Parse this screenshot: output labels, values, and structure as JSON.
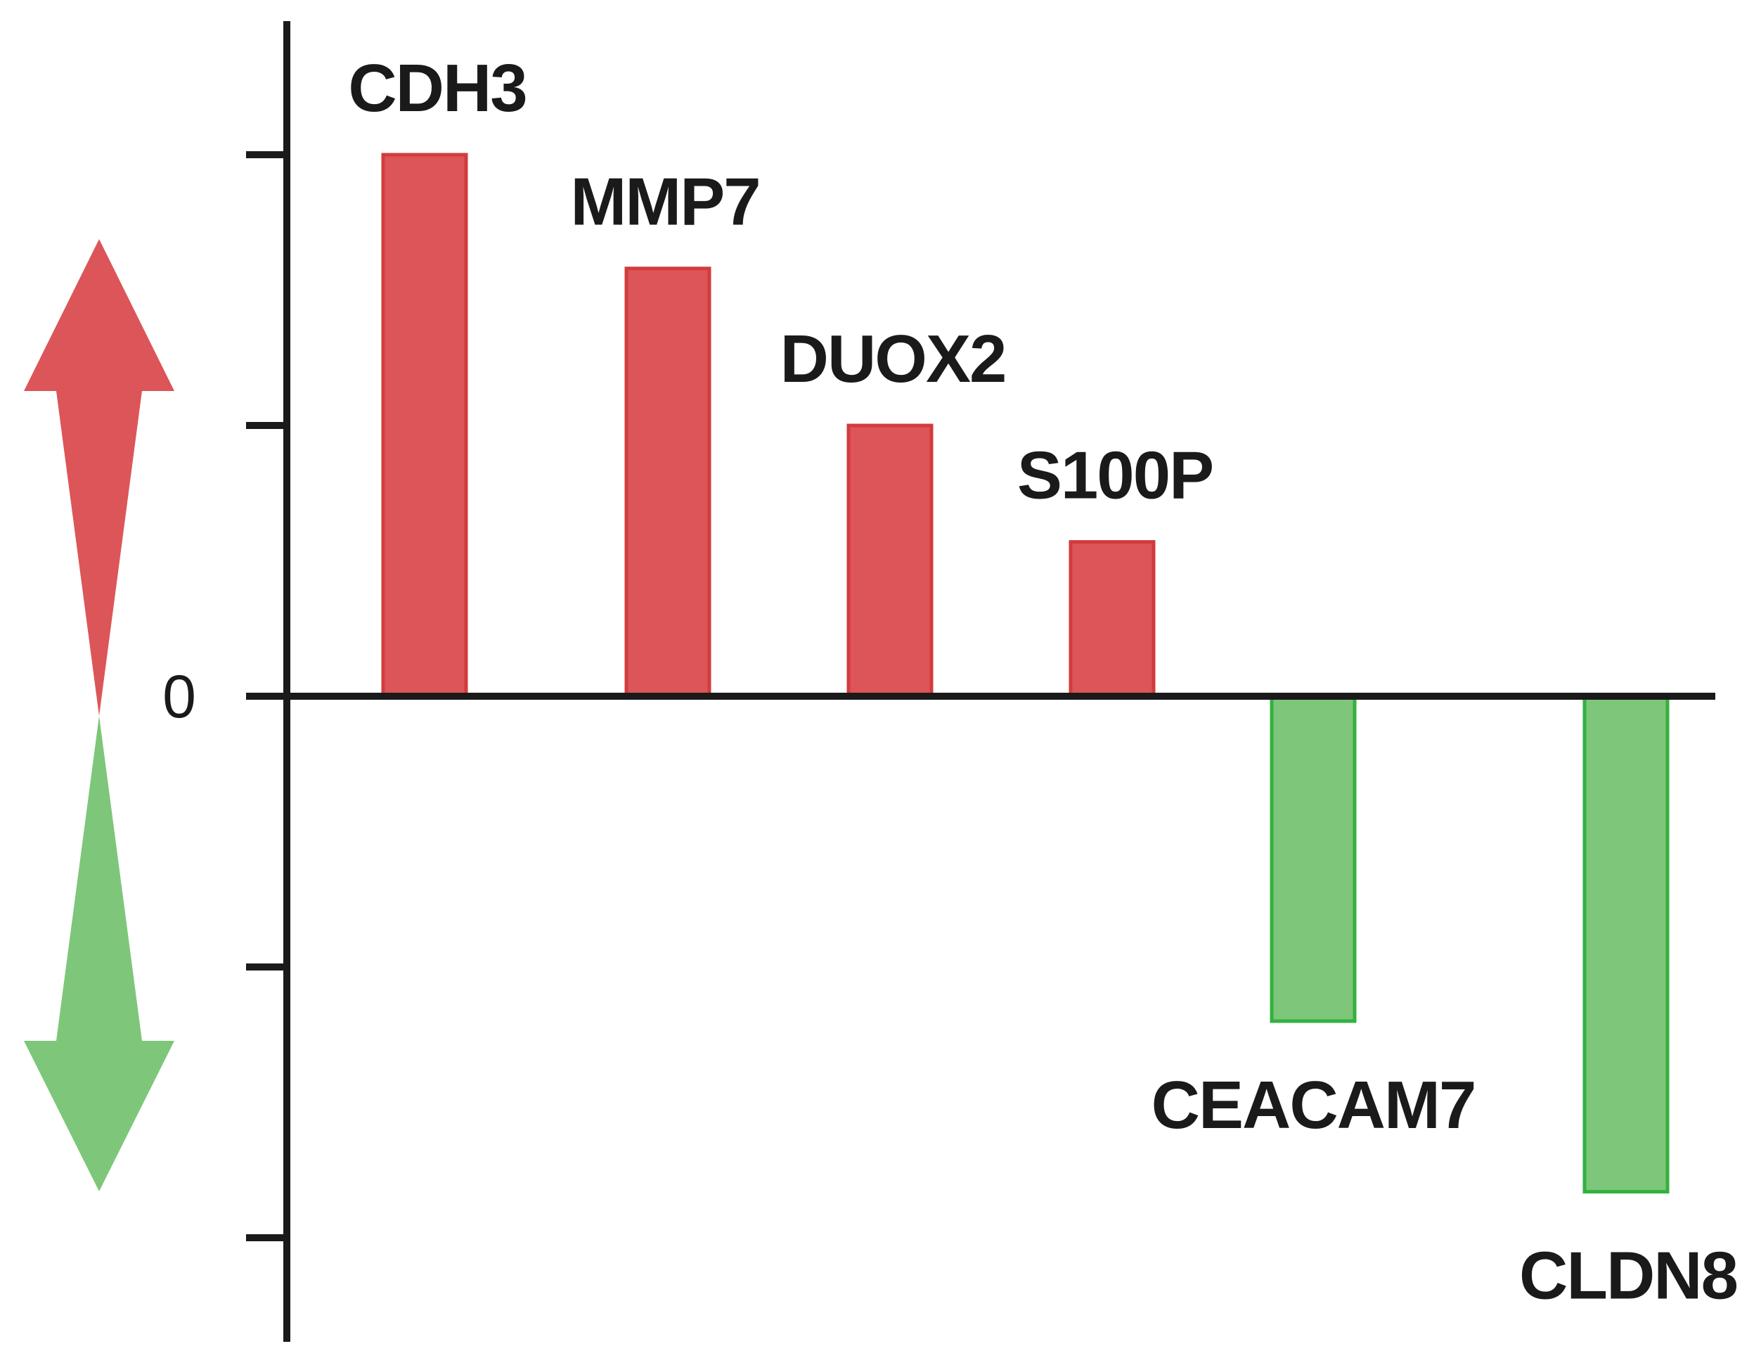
{
  "chart_data": {
    "type": "bar",
    "categories": [
      "CDH3",
      "MMP7",
      "DUOX2",
      "S100P",
      "CEACAM7",
      "CLDN8"
    ],
    "values": [
      2.0,
      1.58,
      1.0,
      0.57,
      -1.2,
      -1.83
    ],
    "ylim": [
      -2.3,
      2.5
    ],
    "yticks": [
      2,
      1,
      -1,
      -2
    ],
    "zero_label": "0",
    "title": "",
    "xlabel": "",
    "ylabel": "",
    "grid": false,
    "legend": "none",
    "colors": {
      "positive_fill": "#dc5558",
      "positive_stroke": "#d33b3e",
      "negative_fill": "#7ec67a",
      "negative_stroke": "#33b140",
      "axis": "#1a1a1a"
    },
    "indicator_arrows": [
      {
        "direction": "up",
        "color": "#dc5558"
      },
      {
        "direction": "down",
        "color": "#7ec67a"
      }
    ]
  }
}
